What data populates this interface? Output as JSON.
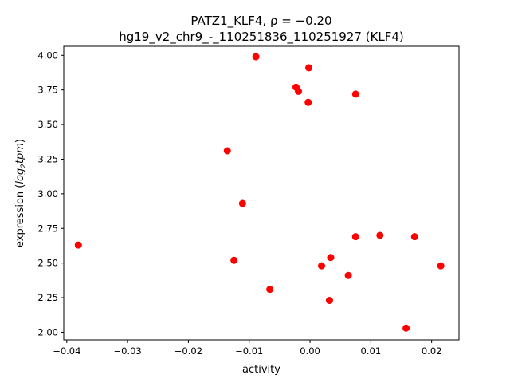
{
  "chart_data": {
    "type": "scatter",
    "title": "PATZ1_KLF4, ρ = −0.20",
    "subtitle": "hg19_v2_chr9_-_110251836_110251927 (KLF4)",
    "xlabel": "activity",
    "ylabel_main": "expression (",
    "ylabel_log": "log",
    "ylabel_sub": "2",
    "ylabel_unit": "tpm",
    "ylabel_close": ")",
    "xlim": [
      -0.0405,
      0.0245
    ],
    "ylim": [
      1.945,
      4.065
    ],
    "xticks": [
      -0.04,
      -0.03,
      -0.02,
      -0.01,
      0.0,
      0.01,
      0.02
    ],
    "xtick_labels": [
      "−0.04",
      "−0.03",
      "−0.02",
      "−0.01",
      "0.00",
      "0.01",
      "0.02"
    ],
    "yticks": [
      2.0,
      2.25,
      2.5,
      2.75,
      3.0,
      3.25,
      3.5,
      3.75,
      4.0
    ],
    "ytick_labels": [
      "2.00",
      "2.25",
      "2.50",
      "2.75",
      "3.00",
      "3.25",
      "3.50",
      "3.75",
      "4.00"
    ],
    "marker_color": "#ff0000",
    "grid": false,
    "points": [
      {
        "x": -0.0381,
        "y": 2.63
      },
      {
        "x": -0.0136,
        "y": 3.31
      },
      {
        "x": -0.0125,
        "y": 2.52
      },
      {
        "x": -0.0111,
        "y": 2.93
      },
      {
        "x": -0.0089,
        "y": 3.99
      },
      {
        "x": -0.0066,
        "y": 2.31
      },
      {
        "x": -0.0023,
        "y": 3.77
      },
      {
        "x": -0.0019,
        "y": 3.74
      },
      {
        "x": -0.0002,
        "y": 3.91
      },
      {
        "x": -0.0003,
        "y": 3.66
      },
      {
        "x": 0.0019,
        "y": 2.48
      },
      {
        "x": 0.0032,
        "y": 2.23
      },
      {
        "x": 0.0034,
        "y": 2.54
      },
      {
        "x": 0.0063,
        "y": 2.41
      },
      {
        "x": 0.0075,
        "y": 3.72
      },
      {
        "x": 0.0075,
        "y": 2.69
      },
      {
        "x": 0.0115,
        "y": 2.7
      },
      {
        "x": 0.0158,
        "y": 2.03
      },
      {
        "x": 0.0172,
        "y": 2.69
      },
      {
        "x": 0.0215,
        "y": 2.48
      }
    ]
  }
}
